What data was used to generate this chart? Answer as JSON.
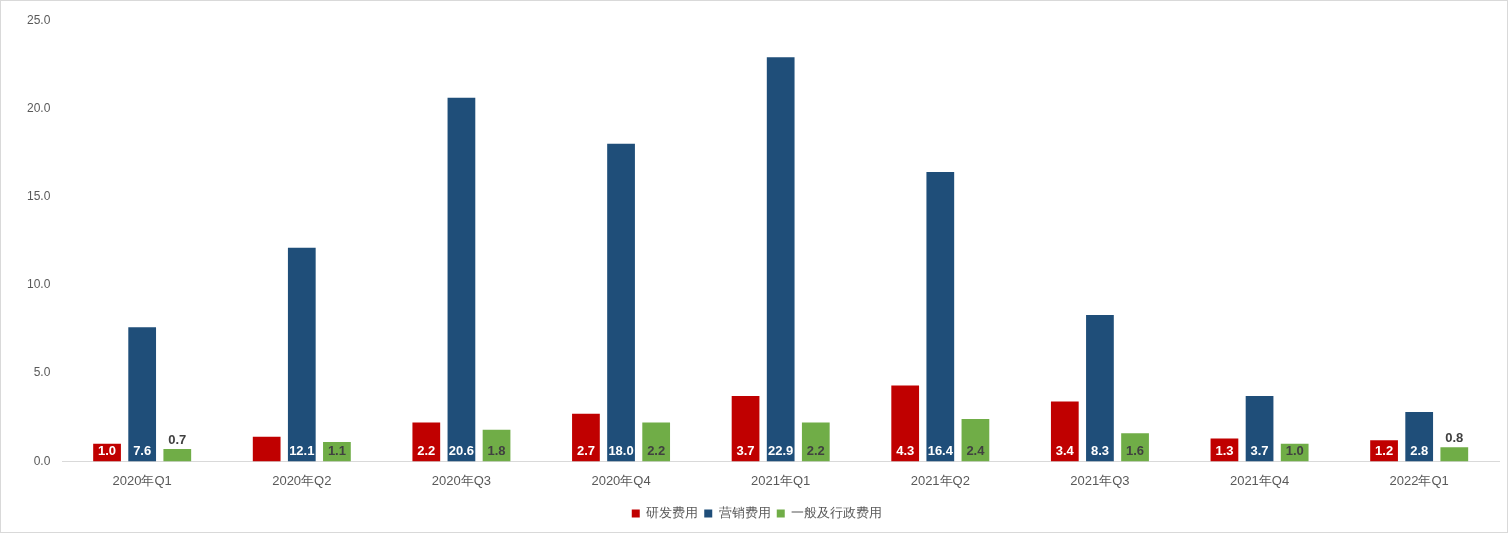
{
  "chart_data": {
    "type": "bar",
    "categories": [
      "2020年Q1",
      "2020年Q2",
      "2020年Q3",
      "2020年Q4",
      "2021年Q1",
      "2021年Q2",
      "2021年Q3",
      "2021年Q4",
      "2022年Q1"
    ],
    "series": [
      {
        "name": "研发费用",
        "color": "#c00000",
        "values": [
          1.0,
          1.4,
          2.2,
          2.7,
          3.7,
          4.3,
          3.4,
          1.3,
          1.2
        ],
        "value_labels": [
          "1.0",
          null,
          "2.2",
          "2.7",
          "3.7",
          "4.3",
          "3.4",
          "1.3",
          "1.2"
        ]
      },
      {
        "name": "营销费用",
        "color": "#1f4e79",
        "values": [
          7.6,
          12.1,
          20.6,
          18.0,
          22.9,
          16.4,
          8.3,
          3.7,
          2.8
        ],
        "value_labels": [
          "7.6",
          "12.1",
          "20.6",
          "18.0",
          "22.9",
          "16.4",
          "8.3",
          "3.7",
          "2.8"
        ]
      },
      {
        "name": "一般及行政费用",
        "color": "#70ad47",
        "values": [
          0.7,
          1.1,
          1.8,
          2.2,
          2.2,
          2.4,
          1.6,
          1.0,
          0.8
        ],
        "value_labels": [
          "0.7",
          "1.1",
          "1.8",
          "2.2",
          "2.2",
          "2.4",
          "1.6",
          "1.0",
          "0.8"
        ]
      }
    ],
    "ylim": [
      0,
      25
    ],
    "yticks": [
      {
        "value": 0,
        "label": "0.0"
      },
      {
        "value": 5,
        "label": "5.0"
      },
      {
        "value": 10,
        "label": "10.0"
      },
      {
        "value": 15,
        "label": "15.0"
      },
      {
        "value": 20,
        "label": "20.0"
      },
      {
        "value": 25,
        "label": "25.0"
      }
    ],
    "grid": false,
    "legend": "bottom"
  }
}
